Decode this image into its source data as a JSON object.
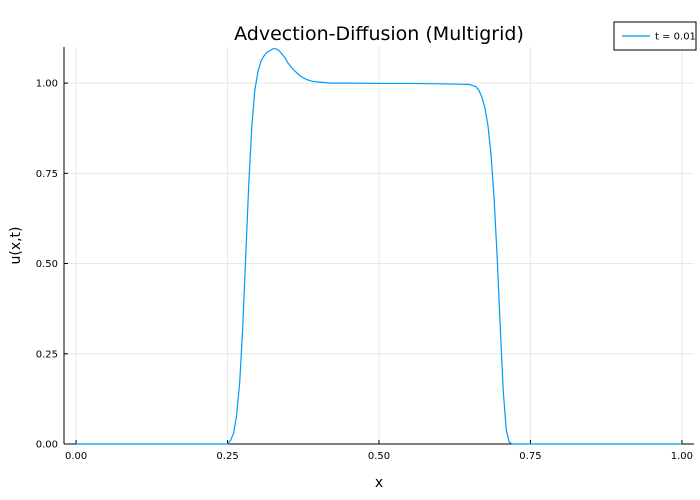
{
  "chart_data": {
    "type": "line",
    "title": "Advection-Diffusion (Multigrid)",
    "xlabel": "x",
    "ylabel": "u(x,t)",
    "xlim": [
      -0.02,
      1.02
    ],
    "ylim": [
      0,
      1.1
    ],
    "xticks": [
      0.0,
      0.25,
      0.5,
      0.75,
      1.0
    ],
    "xtick_labels": [
      "0.00",
      "0.25",
      "0.50",
      "0.75",
      "1.00"
    ],
    "yticks": [
      0.0,
      0.25,
      0.5,
      0.75,
      1.0
    ],
    "ytick_labels": [
      "0.00",
      "0.25",
      "0.50",
      "0.75",
      "1.00"
    ],
    "grid": true,
    "legend_position": "top-right",
    "series": [
      {
        "name": "t = 0.01",
        "color": "#009AF9",
        "x": [
          0.0,
          0.25,
          0.255,
          0.26,
          0.265,
          0.27,
          0.275,
          0.28,
          0.285,
          0.29,
          0.295,
          0.3,
          0.305,
          0.31,
          0.315,
          0.32,
          0.325,
          0.33,
          0.335,
          0.34,
          0.345,
          0.35,
          0.36,
          0.37,
          0.38,
          0.39,
          0.4,
          0.42,
          0.45,
          0.5,
          0.55,
          0.6,
          0.63,
          0.65,
          0.66,
          0.665,
          0.67,
          0.675,
          0.68,
          0.685,
          0.69,
          0.695,
          0.7,
          0.705,
          0.71,
          0.715,
          0.72,
          0.75,
          0.8,
          0.9,
          1.0
        ],
        "y": [
          0.0,
          0.0,
          0.01,
          0.03,
          0.08,
          0.17,
          0.32,
          0.52,
          0.72,
          0.88,
          0.98,
          1.03,
          1.06,
          1.075,
          1.085,
          1.09,
          1.095,
          1.095,
          1.09,
          1.08,
          1.07,
          1.055,
          1.035,
          1.02,
          1.01,
          1.005,
          1.003,
          1.0,
          1.0,
          0.999,
          0.999,
          0.998,
          0.997,
          0.996,
          0.99,
          0.98,
          0.96,
          0.93,
          0.88,
          0.8,
          0.68,
          0.52,
          0.33,
          0.15,
          0.04,
          0.005,
          0.0,
          0.0,
          0.0,
          0.0,
          0.0
        ]
      }
    ]
  }
}
